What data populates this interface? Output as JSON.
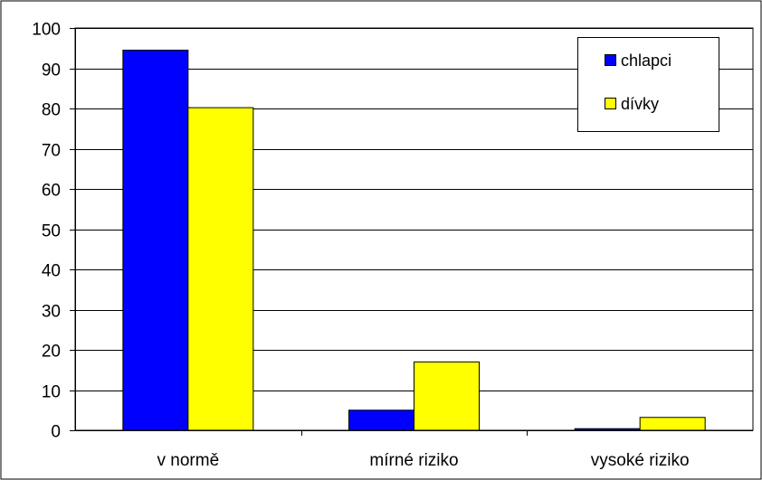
{
  "chart_data": {
    "type": "bar",
    "categories": [
      "v normě",
      "mírné riziko",
      "vysoké riziko"
    ],
    "series": [
      {
        "name": "chlapci",
        "values": [
          94.5,
          5.0,
          0.4
        ],
        "color": "#0000ff"
      },
      {
        "name": "dívky",
        "values": [
          80.2,
          17.0,
          3.2
        ],
        "color": "#ffff00"
      }
    ],
    "ylim": [
      0,
      100
    ],
    "y_ticks": [
      0,
      10,
      20,
      30,
      40,
      50,
      60,
      70,
      80,
      90,
      100
    ],
    "y_tick_labels": [
      "0",
      "10",
      "20",
      "30",
      "40",
      "50",
      "60",
      "70",
      "80",
      "90",
      "100"
    ],
    "grid": true,
    "legend_position": "top-right",
    "plot_background": "#ffffff",
    "gridline_color": "#000000"
  }
}
